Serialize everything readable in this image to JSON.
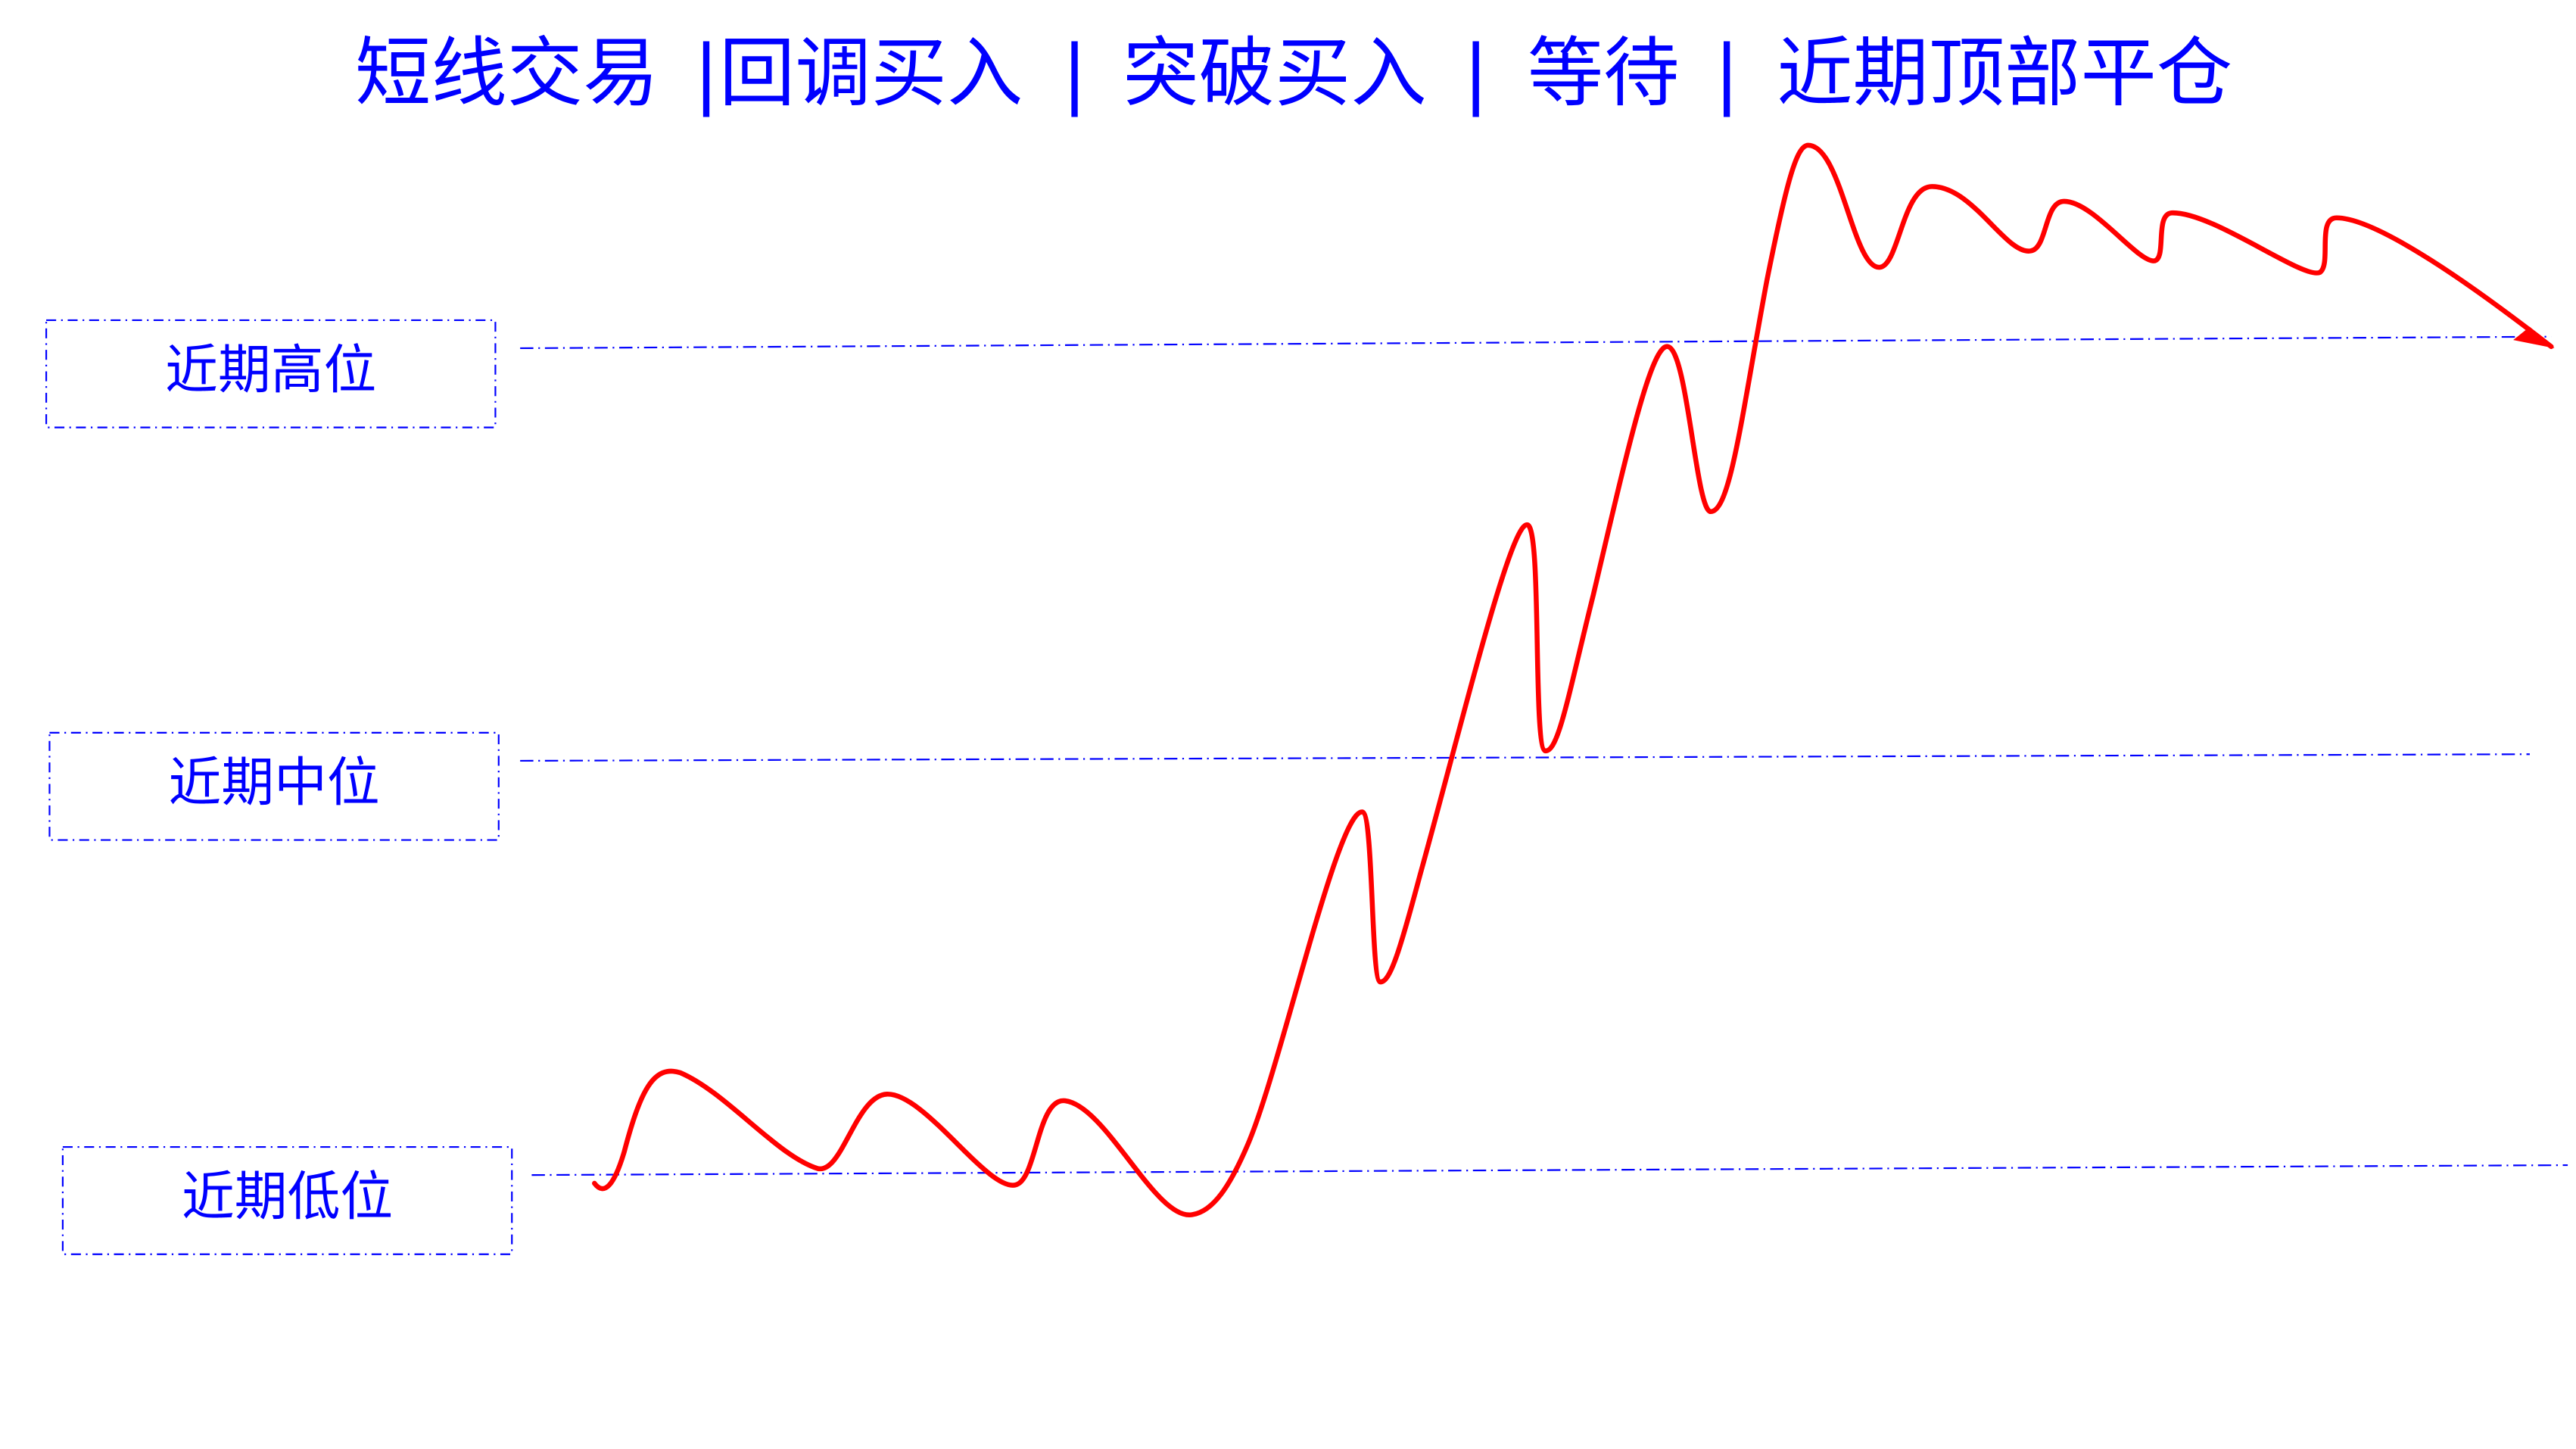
{
  "title": {
    "segments": [
      "短线交易",
      "|回调买入",
      "|",
      "突破买入",
      "|",
      "等待",
      "|",
      "近期顶部平仓"
    ]
  },
  "levels": [
    {
      "label": "近期高位"
    },
    {
      "label": "近期中位"
    },
    {
      "label": "近期低位"
    }
  ],
  "colors": {
    "text": "#0000ff",
    "price_line": "#ff0000",
    "level_line": "#0000ff"
  },
  "icons": {
    "trend_end": "arrow-icon"
  }
}
